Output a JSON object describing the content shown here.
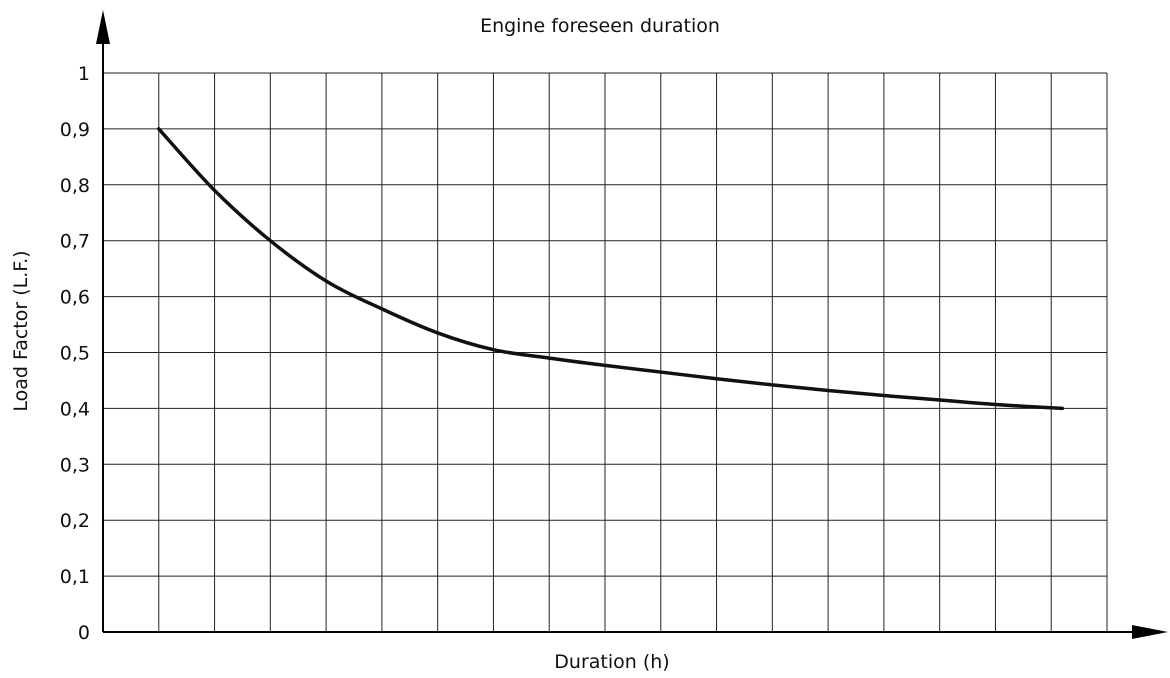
{
  "chart_data": {
    "type": "line",
    "title": "Engine foreseen duration",
    "xlabel": "Duration (h)",
    "ylabel": "Load Factor (L.F.)",
    "ylim": [
      0,
      1
    ],
    "y_ticks": [
      {
        "value": 0,
        "label": "0"
      },
      {
        "value": 0.1,
        "label": "0,1"
      },
      {
        "value": 0.2,
        "label": "0,2"
      },
      {
        "value": 0.3,
        "label": "0,3"
      },
      {
        "value": 0.4,
        "label": "0,4"
      },
      {
        "value": 0.5,
        "label": "0,5"
      },
      {
        "value": 0.6,
        "label": "0,6"
      },
      {
        "value": 0.7,
        "label": "0,7"
      },
      {
        "value": 0.8,
        "label": "0,8"
      },
      {
        "value": 0.9,
        "label": "0,9"
      },
      {
        "value": 1,
        "label": "1"
      }
    ],
    "x_gridlines": 18,
    "xlim": [
      0,
      18
    ],
    "grid": true,
    "series": [
      {
        "x": [
          1,
          2,
          3,
          4,
          5,
          6,
          7,
          8,
          9,
          10,
          11,
          12,
          13,
          14,
          15,
          16,
          17.2
        ],
        "values": [
          0.9,
          0.79,
          0.7,
          0.628,
          0.578,
          0.535,
          0.505,
          0.49,
          0.477,
          0.465,
          0.453,
          0.442,
          0.432,
          0.423,
          0.415,
          0.407,
          0.4
        ]
      }
    ],
    "colors": {
      "line": "#111111",
      "grid": "#222222",
      "axis": "#000000"
    }
  }
}
